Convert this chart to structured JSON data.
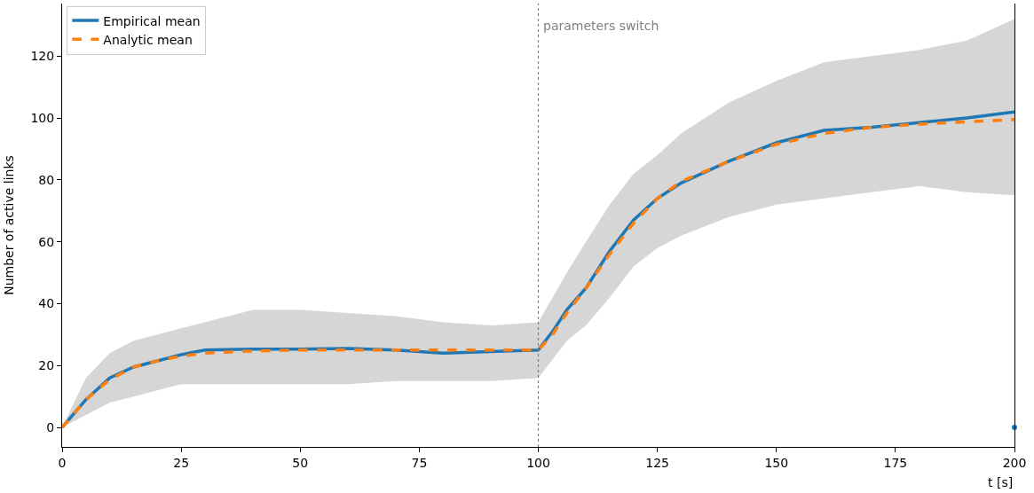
{
  "chart_data": {
    "type": "line",
    "xlabel": "t [s]",
    "ylabel": "Number of active links",
    "xlim": [
      0,
      200
    ],
    "xticks": [
      0,
      25,
      50,
      75,
      100,
      125,
      150,
      175,
      200
    ],
    "ylim": [
      -6.3,
      137
    ],
    "yticks": [
      0,
      20,
      40,
      60,
      80,
      100,
      120
    ],
    "legend": "top left",
    "ref_lines": [
      {
        "axis": "x",
        "value": 100,
        "label": "parameters switch",
        "color": "#808080",
        "line_style": "dotted"
      }
    ],
    "series": [
      {
        "name": "Empirical mean",
        "color": "#1f77b4",
        "line_style": "solid",
        "x": [
          0,
          5,
          10,
          15,
          20,
          25,
          30,
          40,
          50,
          60,
          70,
          80,
          90,
          100,
          103,
          106,
          110,
          115,
          120,
          125,
          130,
          140,
          150,
          160,
          170,
          180,
          190,
          200
        ],
        "values": [
          0,
          9,
          16,
          19.5,
          21.5,
          23.5,
          25,
          25.3,
          25.3,
          25.5,
          25,
          24,
          24.5,
          25,
          31,
          38,
          45,
          57,
          67,
          74,
          79,
          86,
          92,
          96,
          97,
          98.5,
          100,
          102
        ],
        "lower": [
          0,
          4,
          8,
          10,
          12,
          14,
          14,
          14,
          14,
          14,
          15,
          15,
          15,
          16,
          22,
          28,
          33,
          42,
          52,
          58,
          62,
          68,
          72,
          74,
          76,
          78,
          76,
          75
        ],
        "upper": [
          0,
          16,
          24,
          28,
          30,
          32,
          34,
          38,
          38,
          37,
          36,
          34,
          33,
          34,
          42,
          50,
          60,
          72,
          82,
          88,
          95,
          105,
          112,
          118,
          120,
          122,
          125,
          132
        ]
      },
      {
        "name": "Analytic mean",
        "color": "#ff7f0e",
        "line_style": "dashed",
        "x": [
          0,
          5,
          10,
          15,
          20,
          25,
          30,
          40,
          50,
          75,
          100,
          103,
          106,
          110,
          115,
          120,
          125,
          130,
          140,
          150,
          160,
          170,
          180,
          190,
          200
        ],
        "values": [
          0,
          9,
          15.5,
          19.5,
          21.5,
          23,
          24,
          24.7,
          25,
          25,
          25,
          30,
          37,
          45,
          56,
          66,
          74,
          79.5,
          86,
          91.5,
          95,
          97,
          98,
          98.8,
          99.5
        ]
      },
      {
        "color": "#1f77b4",
        "type": "scatter",
        "marker": "circle",
        "x": [
          200
        ],
        "values": [
          0
        ]
      }
    ]
  }
}
